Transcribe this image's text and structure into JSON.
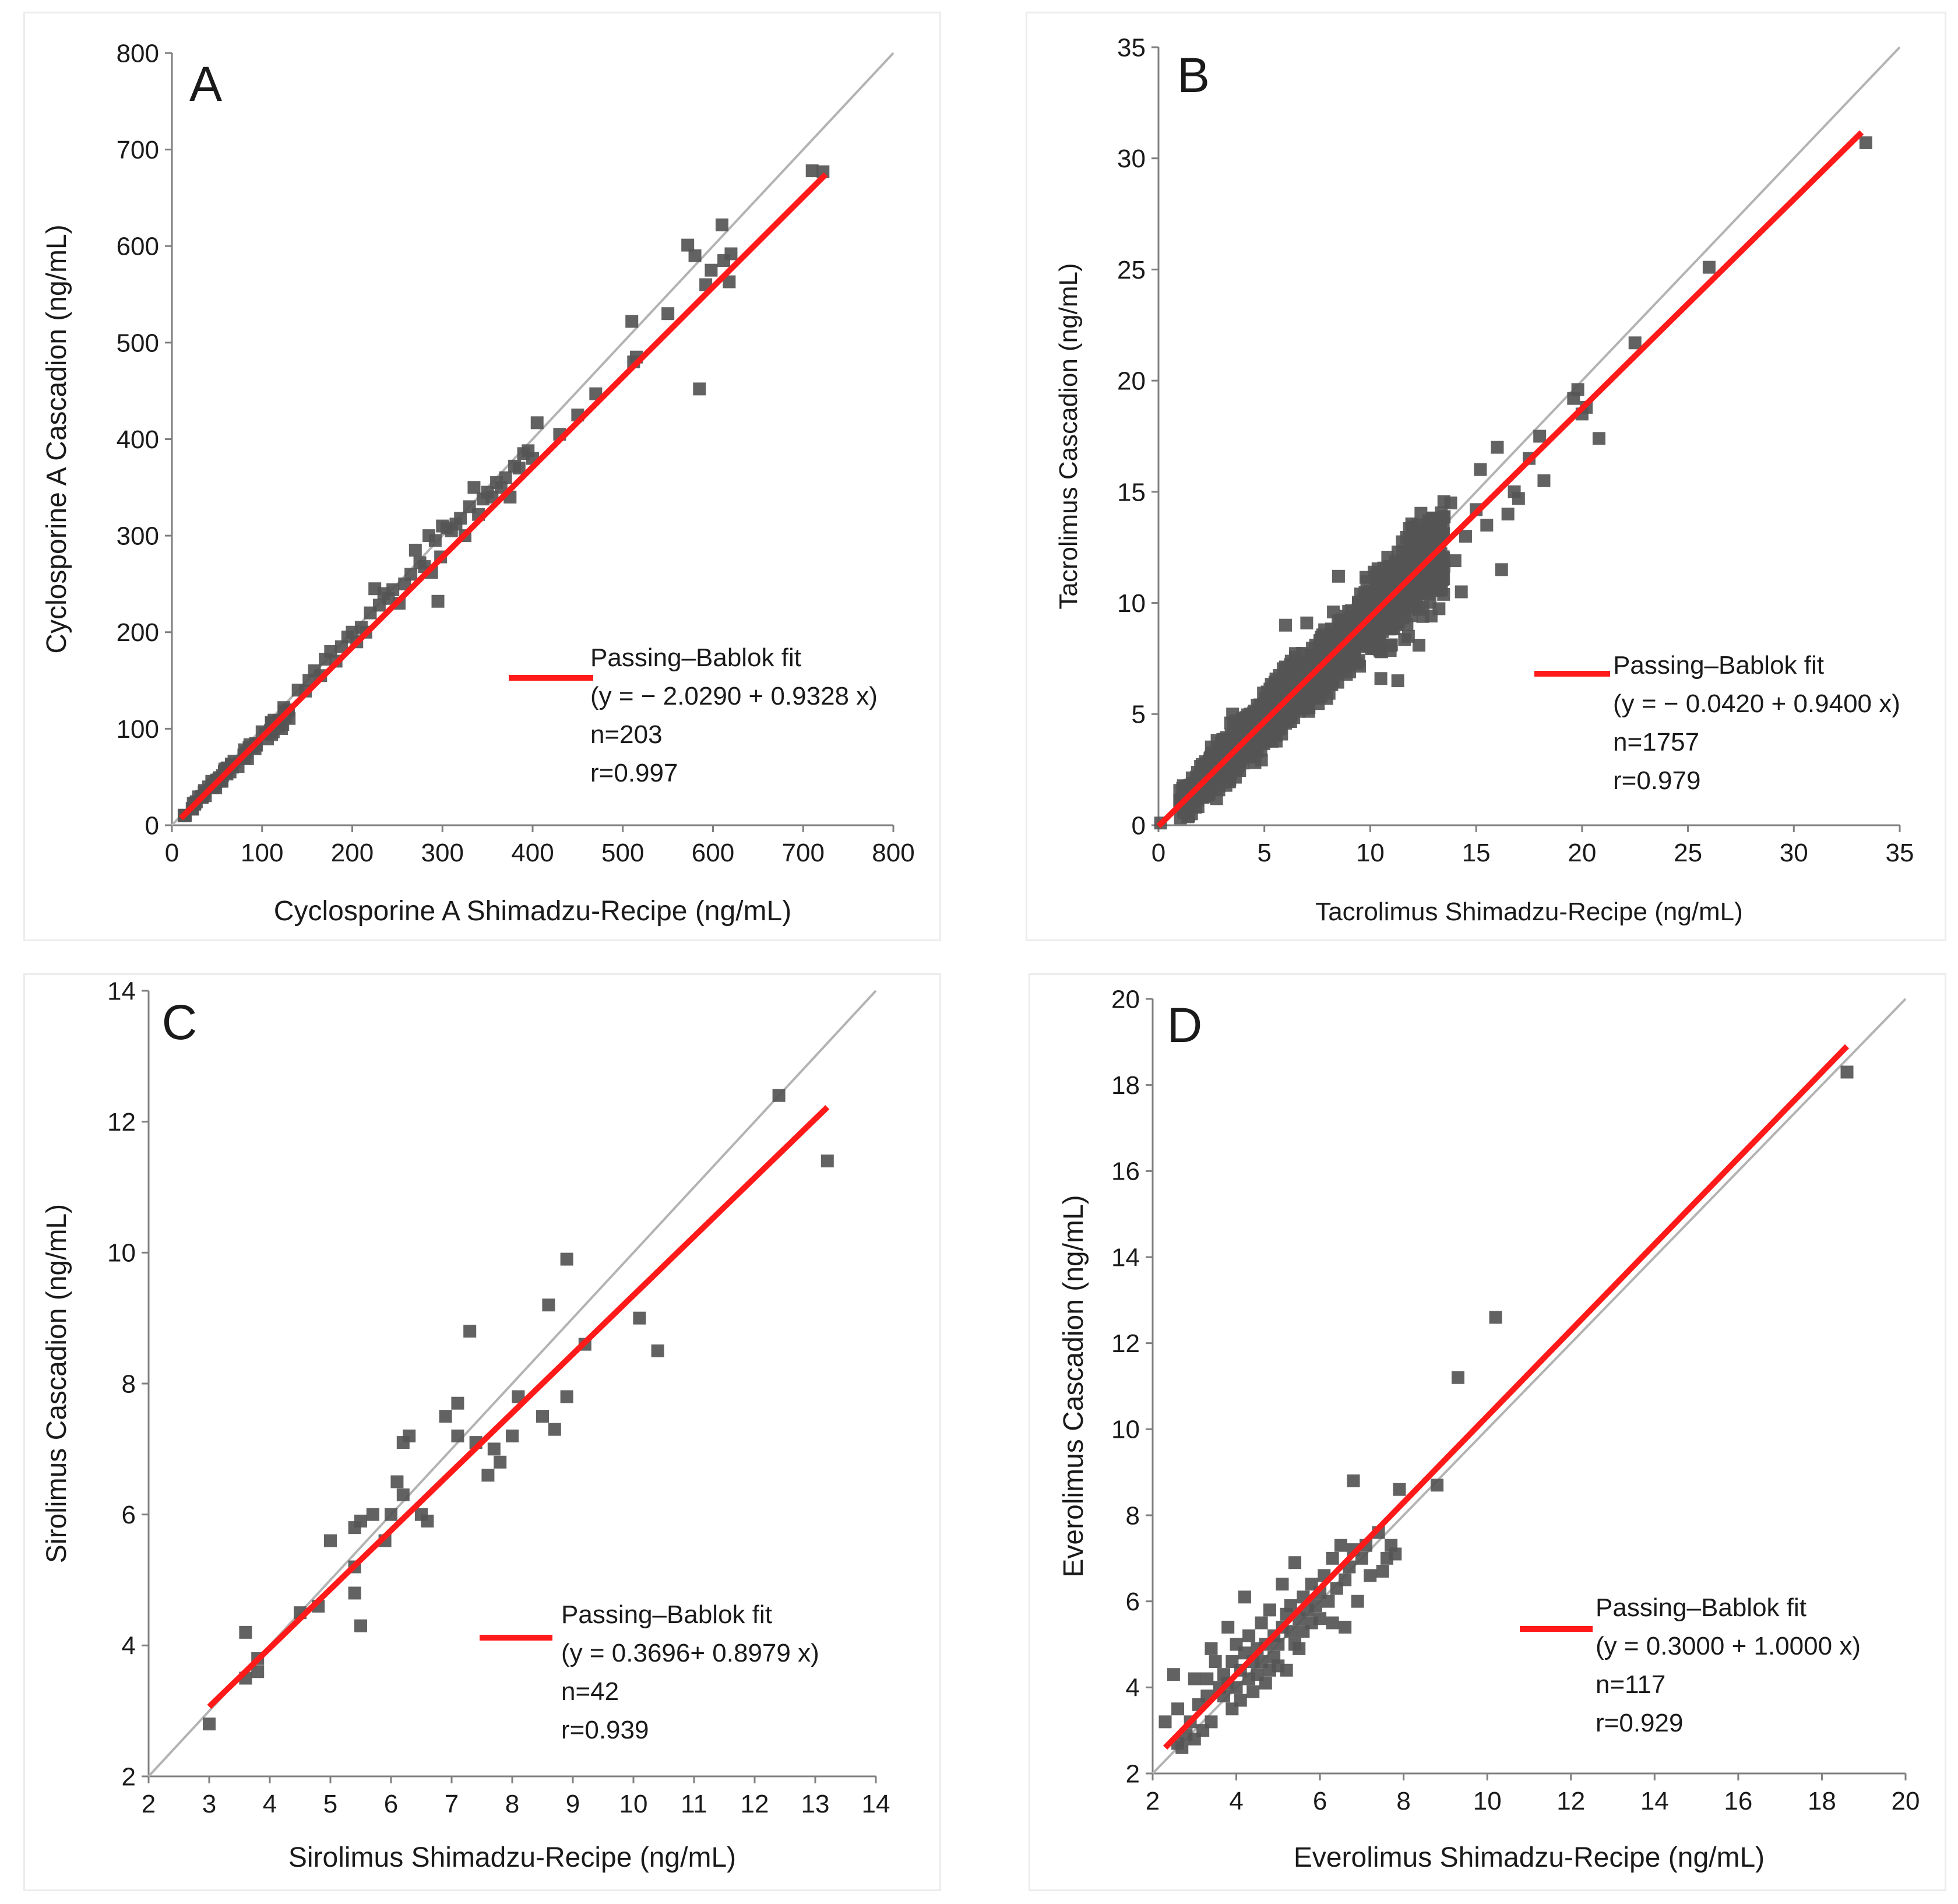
{
  "chart_data": [
    {
      "type": "scatter",
      "panel_letter": "A",
      "xlabel": "Cyclosporine A Shimadzu-Recipe (ng/mL)",
      "ylabel": "Cyclosporine A  Cascadion (ng/mL)",
      "xlim": [
        0,
        800
      ],
      "ylim": [
        0,
        800
      ],
      "xticks": [
        0,
        100,
        200,
        300,
        400,
        500,
        600,
        700,
        800
      ],
      "yticks": [
        0,
        100,
        200,
        300,
        400,
        500,
        600,
        700,
        800
      ],
      "legend": {
        "label": "Passing–Bablok fit",
        "equation": "(y = − 2.0290 + 0.9328 x)",
        "n": "n=203",
        "r": "r=0.997",
        "placement": "lower-right"
      },
      "identity_line": [
        [
          0,
          0
        ],
        [
          800,
          800
        ]
      ],
      "fit_line": {
        "intercept": -2.029,
        "slope": 0.9328,
        "x_range": [
          10,
          725
        ]
      },
      "cloud": {
        "x_min": 12,
        "x_max": 130,
        "count": 90,
        "sd": 3.5
      },
      "points": [
        [
          140,
          140
        ],
        [
          148,
          139
        ],
        [
          152,
          150
        ],
        [
          158,
          160
        ],
        [
          165,
          155
        ],
        [
          170,
          172
        ],
        [
          176,
          180
        ],
        [
          182,
          170
        ],
        [
          188,
          185
        ],
        [
          195,
          195
        ],
        [
          200,
          200
        ],
        [
          205,
          190
        ],
        [
          210,
          205
        ],
        [
          215,
          200
        ],
        [
          220,
          220
        ],
        [
          225,
          245
        ],
        [
          230,
          228
        ],
        [
          235,
          240
        ],
        [
          240,
          235
        ],
        [
          245,
          244
        ],
        [
          252,
          230
        ],
        [
          258,
          250
        ],
        [
          265,
          260
        ],
        [
          270,
          285
        ],
        [
          275,
          272
        ],
        [
          280,
          268
        ],
        [
          285,
          300
        ],
        [
          288,
          262
        ],
        [
          292,
          295
        ],
        [
          295,
          232
        ],
        [
          298,
          278
        ],
        [
          300,
          310
        ],
        [
          305,
          308
        ],
        [
          310,
          305
        ],
        [
          315,
          312
        ],
        [
          320,
          318
        ],
        [
          325,
          300
        ],
        [
          330,
          330
        ],
        [
          335,
          350
        ],
        [
          340,
          322
        ],
        [
          345,
          338
        ],
        [
          350,
          345
        ],
        [
          355,
          340
        ],
        [
          360,
          355
        ],
        [
          365,
          350
        ],
        [
          370,
          360
        ],
        [
          375,
          340
        ],
        [
          380,
          372
        ],
        [
          385,
          370
        ],
        [
          390,
          385
        ],
        [
          395,
          388
        ],
        [
          400,
          380
        ],
        [
          405,
          417
        ],
        [
          430,
          405
        ],
        [
          450,
          425
        ],
        [
          470,
          447
        ],
        [
          510,
          522
        ],
        [
          512,
          480
        ],
        [
          515,
          485
        ],
        [
          550,
          530
        ],
        [
          572,
          601
        ],
        [
          580,
          590
        ],
        [
          585,
          452
        ],
        [
          592,
          560
        ],
        [
          598,
          575
        ],
        [
          610,
          622
        ],
        [
          612,
          585
        ],
        [
          618,
          563
        ],
        [
          620,
          592
        ],
        [
          710,
          678
        ],
        [
          722,
          677
        ]
      ]
    },
    {
      "type": "scatter",
      "panel_letter": "B",
      "xlabel": "Tacrolimus Shimadzu-Recipe (ng/mL)",
      "ylabel": "Tacrolimus Cascadion (ng/mL)",
      "xlim": [
        0,
        35
      ],
      "ylim": [
        0,
        35
      ],
      "xticks": [
        0,
        5,
        10,
        15,
        20,
        25,
        30,
        35
      ],
      "yticks": [
        0,
        5,
        10,
        15,
        20,
        25,
        30,
        35
      ],
      "legend": {
        "label": "Passing–Bablok fit",
        "equation": "(y = − 0.0420 + 0.9400 x)",
        "n": "n=1757",
        "r": "r=0.979",
        "placement": "lower-right"
      },
      "identity_line": [
        [
          0,
          0
        ],
        [
          35,
          35
        ]
      ],
      "fit_line": {
        "intercept": -0.042,
        "slope": 0.94,
        "x_range": [
          0,
          33.2
        ]
      },
      "cloud": {
        "x_min": 1.0,
        "x_max": 13.5,
        "count": 1650,
        "sd": 0.7
      },
      "points": [
        [
          0.1,
          0.1
        ],
        [
          1.0,
          1.1
        ],
        [
          3.5,
          5.0
        ],
        [
          4.0,
          2.8
        ],
        [
          6.0,
          9.0
        ],
        [
          7.0,
          9.1
        ],
        [
          8.5,
          11.2
        ],
        [
          10.5,
          6.6
        ],
        [
          11.3,
          6.5
        ],
        [
          11.8,
          8.5
        ],
        [
          12.3,
          8.1
        ],
        [
          12.8,
          11.0
        ],
        [
          13.2,
          13.0
        ],
        [
          13.8,
          14.5
        ],
        [
          14.0,
          11.9
        ],
        [
          14.3,
          10.5
        ],
        [
          14.5,
          13.0
        ],
        [
          15.0,
          14.2
        ],
        [
          15.2,
          16.0
        ],
        [
          15.5,
          13.5
        ],
        [
          16.0,
          17.0
        ],
        [
          16.2,
          11.5
        ],
        [
          16.5,
          14.0
        ],
        [
          16.8,
          15.0
        ],
        [
          17.0,
          14.7
        ],
        [
          17.5,
          16.5
        ],
        [
          18.0,
          17.5
        ],
        [
          18.2,
          15.5
        ],
        [
          19.6,
          19.2
        ],
        [
          19.8,
          19.6
        ],
        [
          20.0,
          18.5
        ],
        [
          20.2,
          18.8
        ],
        [
          20.8,
          17.4
        ],
        [
          22.5,
          21.7
        ],
        [
          26.0,
          25.1
        ],
        [
          33.4,
          30.7
        ]
      ]
    },
    {
      "type": "scatter",
      "panel_letter": "C",
      "xlabel": "Sirolimus Shimadzu-Recipe (ng/mL)",
      "ylabel": "Sirolimus Cascadion (ng/mL)",
      "xlim": [
        2,
        14
      ],
      "ylim": [
        2,
        14
      ],
      "xticks": [
        2,
        3,
        4,
        5,
        6,
        7,
        8,
        9,
        10,
        11,
        12,
        13,
        14
      ],
      "yticks": [
        2,
        4,
        6,
        8,
        10,
        12,
        14
      ],
      "legend": {
        "label": "Passing–Bablok fit",
        "equation": "(y = 0.3696+ 0.8979 x)",
        "n": "n=42",
        "r": "r=0.939",
        "placement": "lower-right"
      },
      "identity_line": [
        [
          2,
          2
        ],
        [
          14,
          14
        ]
      ],
      "fit_line": {
        "intercept": 0.3696,
        "slope": 0.8979,
        "x_range": [
          3.0,
          13.2
        ]
      },
      "points": [
        [
          3.0,
          2.8
        ],
        [
          3.6,
          3.5
        ],
        [
          3.6,
          4.2
        ],
        [
          3.8,
          3.6
        ],
        [
          3.8,
          3.8
        ],
        [
          4.5,
          4.5
        ],
        [
          4.8,
          4.6
        ],
        [
          5.0,
          5.6
        ],
        [
          5.4,
          5.2
        ],
        [
          5.4,
          5.8
        ],
        [
          5.4,
          4.8
        ],
        [
          5.5,
          5.9
        ],
        [
          5.5,
          4.3
        ],
        [
          5.7,
          6.0
        ],
        [
          5.9,
          5.6
        ],
        [
          6.0,
          6.0
        ],
        [
          6.1,
          6.5
        ],
        [
          6.2,
          7.1
        ],
        [
          6.2,
          6.3
        ],
        [
          6.3,
          7.2
        ],
        [
          6.5,
          6.0
        ],
        [
          6.6,
          5.9
        ],
        [
          6.9,
          7.5
        ],
        [
          7.1,
          7.7
        ],
        [
          7.1,
          7.2
        ],
        [
          7.3,
          8.8
        ],
        [
          7.4,
          7.1
        ],
        [
          7.6,
          6.6
        ],
        [
          7.7,
          7.0
        ],
        [
          7.8,
          6.8
        ],
        [
          8.0,
          7.2
        ],
        [
          8.1,
          7.8
        ],
        [
          8.5,
          7.5
        ],
        [
          8.6,
          9.2
        ],
        [
          8.7,
          7.3
        ],
        [
          8.9,
          9.9
        ],
        [
          8.9,
          7.8
        ],
        [
          9.2,
          8.6
        ],
        [
          10.1,
          9.0
        ],
        [
          10.4,
          8.5
        ],
        [
          12.4,
          12.4
        ],
        [
          13.2,
          11.4
        ]
      ]
    },
    {
      "type": "scatter",
      "panel_letter": "D",
      "xlabel": "Everolimus Shimadzu-Recipe (ng/mL)",
      "ylabel": "Everolimus  Cascadion (ng/mL)",
      "xlim": [
        2,
        20
      ],
      "ylim": [
        2,
        20
      ],
      "xticks": [
        2,
        4,
        6,
        8,
        10,
        12,
        14,
        16,
        18,
        20
      ],
      "yticks": [
        2,
        4,
        6,
        8,
        10,
        12,
        14,
        16,
        18,
        20
      ],
      "legend": {
        "label": "Passing–Bablok fit",
        "equation": "(y = 0.3000 + 1.0000 x)",
        "n": "n=117",
        "r": "r=0.929",
        "placement": "lower-right"
      },
      "identity_line": [
        [
          2,
          2
        ],
        [
          20,
          20
        ]
      ],
      "fit_line": {
        "intercept": 0.3,
        "slope": 1.0,
        "x_range": [
          2.3,
          18.6
        ]
      },
      "points": [
        [
          2.3,
          3.2
        ],
        [
          2.5,
          4.3
        ],
        [
          2.6,
          3.5
        ],
        [
          2.6,
          2.7
        ],
        [
          2.7,
          2.6
        ],
        [
          2.8,
          2.9
        ],
        [
          2.9,
          3.2
        ],
        [
          3.0,
          2.8
        ],
        [
          3.0,
          4.2
        ],
        [
          3.1,
          3.6
        ],
        [
          3.2,
          3.0
        ],
        [
          3.3,
          3.8
        ],
        [
          3.3,
          4.2
        ],
        [
          3.4,
          4.9
        ],
        [
          3.4,
          3.2
        ],
        [
          3.5,
          4.6
        ],
        [
          3.6,
          4.0
        ],
        [
          3.7,
          4.3
        ],
        [
          3.7,
          3.8
        ],
        [
          3.8,
          5.4
        ],
        [
          3.8,
          4.1
        ],
        [
          3.9,
          4.6
        ],
        [
          3.9,
          3.5
        ],
        [
          4.0,
          4.0
        ],
        [
          4.0,
          5.0
        ],
        [
          4.1,
          4.4
        ],
        [
          4.1,
          3.7
        ],
        [
          4.2,
          6.1
        ],
        [
          4.2,
          4.8
        ],
        [
          4.3,
          4.2
        ],
        [
          4.3,
          5.2
        ],
        [
          4.4,
          4.6
        ],
        [
          4.4,
          3.9
        ],
        [
          4.5,
          4.9
        ],
        [
          4.5,
          4.3
        ],
        [
          4.6,
          5.5
        ],
        [
          4.6,
          4.6
        ],
        [
          4.7,
          4.1
        ],
        [
          4.7,
          5.0
        ],
        [
          4.8,
          4.4
        ],
        [
          4.8,
          5.8
        ],
        [
          4.9,
          5.2
        ],
        [
          4.9,
          4.7
        ],
        [
          5.0,
          5.0
        ],
        [
          5.0,
          4.5
        ],
        [
          5.1,
          5.4
        ],
        [
          5.1,
          6.4
        ],
        [
          5.2,
          5.7
        ],
        [
          5.2,
          4.4
        ],
        [
          5.3,
          5.3
        ],
        [
          5.3,
          5.9
        ],
        [
          5.4,
          5.0
        ],
        [
          5.4,
          6.9
        ],
        [
          5.5,
          5.6
        ],
        [
          5.5,
          4.9
        ],
        [
          5.6,
          6.1
        ],
        [
          5.6,
          5.3
        ],
        [
          5.7,
          5.8
        ],
        [
          5.8,
          5.5
        ],
        [
          5.8,
          6.4
        ],
        [
          5.9,
          5.9
        ],
        [
          6.0,
          6.2
        ],
        [
          6.0,
          5.6
        ],
        [
          6.1,
          6.6
        ],
        [
          6.2,
          6.0
        ],
        [
          6.3,
          5.5
        ],
        [
          6.3,
          7.0
        ],
        [
          6.4,
          6.3
        ],
        [
          6.5,
          7.3
        ],
        [
          6.6,
          6.5
        ],
        [
          6.6,
          5.4
        ],
        [
          6.7,
          6.8
        ],
        [
          6.8,
          7.2
        ],
        [
          6.8,
          8.8
        ],
        [
          6.9,
          6.0
        ],
        [
          7.0,
          7.0
        ],
        [
          7.1,
          7.3
        ],
        [
          7.2,
          6.6
        ],
        [
          7.4,
          7.6
        ],
        [
          7.5,
          6.7
        ],
        [
          7.6,
          7.0
        ],
        [
          7.7,
          7.3
        ],
        [
          7.8,
          7.1
        ],
        [
          7.9,
          8.6
        ],
        [
          8.8,
          8.7
        ],
        [
          9.3,
          11.2
        ],
        [
          10.2,
          12.6
        ],
        [
          18.6,
          18.3
        ]
      ]
    }
  ],
  "colors": {
    "points": "#555555",
    "fit_line": "#ff1a1a",
    "identity_line": "#b3b3b3",
    "axis": "#7f7f7f",
    "text": "#1a1a1a"
  }
}
